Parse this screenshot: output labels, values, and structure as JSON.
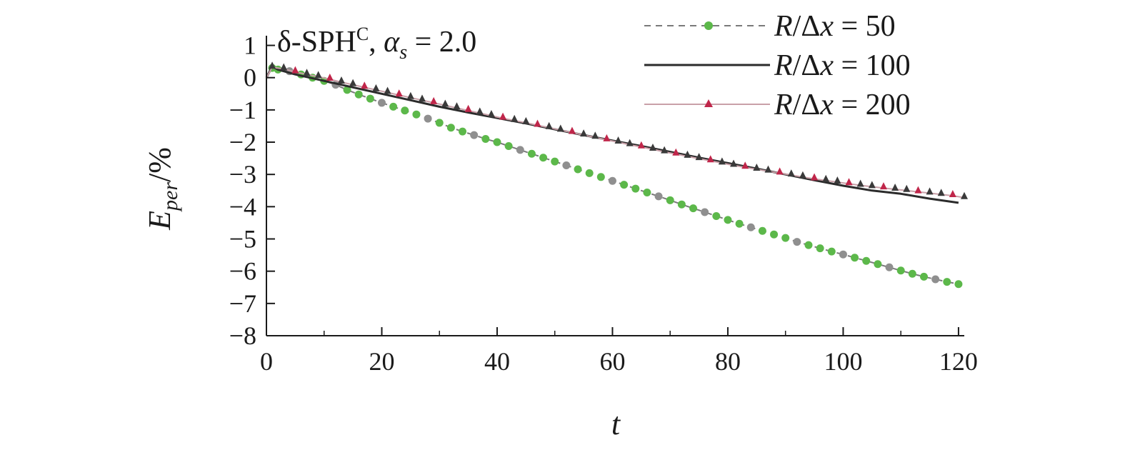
{
  "chart_data": {
    "type": "line",
    "annotation": {
      "prefix": "δ-SPH",
      "superscript": "C",
      "sep": ", ",
      "var": "α",
      "var_sub": "s",
      "rest": " = 2.0"
    },
    "xlabel": "t",
    "ylabel": {
      "base": "E",
      "sub": "per",
      "unit": "/%"
    },
    "xlim": [
      0,
      121
    ],
    "ylim": [
      -8,
      1.3
    ],
    "x_ticks": [
      0,
      20,
      40,
      60,
      80,
      100,
      120
    ],
    "x_tick_labels": [
      "0",
      "20",
      "40",
      "60",
      "80",
      "100",
      "120"
    ],
    "y_ticks": [
      1,
      0,
      -1,
      -2,
      -3,
      -4,
      -5,
      -6,
      -7,
      -8
    ],
    "y_tick_labels": [
      "1",
      "0",
      "−1",
      "−2",
      "−3",
      "−4",
      "−5",
      "−6",
      "−7",
      "−8"
    ],
    "legend_position": "top-right",
    "series": [
      {
        "name": "R/Δx = 50",
        "label_parts": {
          "a": "R",
          "b": "/Δ",
          "c": "x",
          "d": " = 50"
        },
        "color": "#7a7a7a",
        "marker_color": "#5cb84a",
        "style": "dashed",
        "marker": "circle",
        "x": [
          0,
          1,
          2,
          4,
          6,
          8,
          10,
          12,
          14,
          16,
          18,
          20,
          22,
          24,
          26,
          28,
          30,
          32,
          34,
          36,
          38,
          40,
          42,
          44,
          46,
          48,
          50,
          52,
          54,
          56,
          58,
          60,
          62,
          64,
          66,
          68,
          70,
          72,
          74,
          76,
          78,
          80,
          82,
          84,
          86,
          88,
          90,
          92,
          94,
          96,
          98,
          100,
          102,
          104,
          106,
          108,
          110,
          112,
          114,
          116,
          118,
          120
        ],
        "y": [
          0,
          0.3,
          0.25,
          0.2,
          0.1,
          0,
          -0.1,
          -0.22,
          -0.38,
          -0.52,
          -0.65,
          -0.78,
          -0.9,
          -1.02,
          -1.14,
          -1.27,
          -1.4,
          -1.55,
          -1.67,
          -1.78,
          -1.9,
          -2.0,
          -2.12,
          -2.24,
          -2.36,
          -2.48,
          -2.6,
          -2.72,
          -2.84,
          -2.96,
          -3.08,
          -3.2,
          -3.32,
          -3.44,
          -3.56,
          -3.68,
          -3.8,
          -3.93,
          -4.05,
          -4.17,
          -4.29,
          -4.41,
          -4.53,
          -4.64,
          -4.75,
          -4.86,
          -4.97,
          -5.09,
          -5.19,
          -5.29,
          -5.39,
          -5.48,
          -5.58,
          -5.68,
          -5.78,
          -5.88,
          -5.98,
          -6.08,
          -6.17,
          -6.25,
          -6.33,
          -6.4
        ]
      },
      {
        "name": "R/Δx = 100",
        "label_parts": {
          "a": "R",
          "b": "/Δ",
          "c": "x",
          "d": " = 100"
        },
        "color": "#2b2b2b",
        "style": "solid",
        "marker": "none",
        "x": [
          0,
          1,
          2,
          5,
          10,
          15,
          20,
          25,
          30,
          35,
          40,
          45,
          50,
          55,
          60,
          65,
          70,
          75,
          80,
          85,
          90,
          95,
          100,
          105,
          110,
          115,
          120
        ],
        "y": [
          0,
          0.35,
          0.25,
          0.1,
          -0.1,
          -0.3,
          -0.5,
          -0.7,
          -0.9,
          -1.08,
          -1.25,
          -1.42,
          -1.6,
          -1.78,
          -1.95,
          -2.12,
          -2.3,
          -2.48,
          -2.65,
          -2.82,
          -3.0,
          -3.18,
          -3.35,
          -3.5,
          -3.6,
          -3.75,
          -3.88
        ]
      },
      {
        "name": "R/Δx = 200",
        "label_parts": {
          "a": "R",
          "b": "/Δ",
          "c": "x",
          "d": " = 200"
        },
        "color": "#c9a0a8",
        "marker_color": "#c0264a",
        "alt_marker_color": "#3a3a3a",
        "style": "solid",
        "marker": "triangle",
        "x": [
          0,
          1,
          3,
          5,
          7,
          9,
          11,
          13,
          15,
          17,
          19,
          21,
          23,
          25,
          27,
          29,
          31,
          33,
          35,
          37,
          39,
          41,
          43,
          45,
          47,
          49,
          51,
          53,
          55,
          57,
          59,
          61,
          63,
          65,
          67,
          69,
          71,
          73,
          75,
          77,
          79,
          81,
          83,
          85,
          87,
          89,
          91,
          93,
          95,
          97,
          99,
          101,
          103,
          105,
          107,
          109,
          111,
          113,
          115,
          117,
          119,
          121
        ],
        "y": [
          0,
          0.32,
          0.27,
          0.18,
          0.1,
          0.03,
          -0.05,
          -0.14,
          -0.22,
          -0.3,
          -0.38,
          -0.46,
          -0.54,
          -0.62,
          -0.7,
          -0.78,
          -0.86,
          -0.94,
          -1.02,
          -1.1,
          -1.18,
          -1.26,
          -1.33,
          -1.4,
          -1.48,
          -1.55,
          -1.63,
          -1.7,
          -1.78,
          -1.85,
          -1.93,
          -2.0,
          -2.08,
          -2.15,
          -2.22,
          -2.3,
          -2.37,
          -2.44,
          -2.51,
          -2.58,
          -2.65,
          -2.72,
          -2.78,
          -2.84,
          -2.9,
          -2.96,
          -3.02,
          -3.08,
          -3.14,
          -3.19,
          -3.24,
          -3.29,
          -3.34,
          -3.38,
          -3.42,
          -3.46,
          -3.5,
          -3.54,
          -3.58,
          -3.62,
          -3.66,
          -3.72
        ]
      }
    ]
  }
}
